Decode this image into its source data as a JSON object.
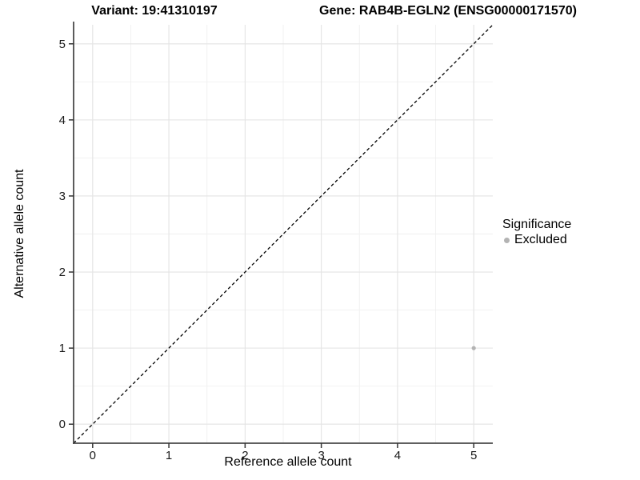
{
  "header": {
    "left_title": "Variant: 19:41310197",
    "right_title": "Gene: RAB4B-EGLN2 (ENSG00000171570)"
  },
  "chart_data": {
    "type": "scatter",
    "xlabel": "Reference allele count",
    "ylabel": "Alternative allele count",
    "xlim": [
      -0.25,
      5.25
    ],
    "ylim": [
      -0.25,
      5.25
    ],
    "x_ticks": [
      0,
      1,
      2,
      3,
      4,
      5
    ],
    "y_ticks": [
      0,
      1,
      2,
      3,
      4,
      5
    ],
    "minor_ticks": [
      0.5,
      1.5,
      2.5,
      3.5,
      4.5
    ],
    "grid": true,
    "series": [
      {
        "name": "Excluded",
        "color": "#b3b3b3",
        "point_radius": 2.6,
        "points": [
          {
            "x": 5,
            "y": 1
          }
        ]
      }
    ],
    "reference_line": {
      "type": "identity-diagonal",
      "style": "dashed",
      "color": "#000000",
      "from": -0.25,
      "to": 5.25
    },
    "legend": {
      "title": "Significance",
      "position": "right",
      "items": [
        {
          "label": "Excluded",
          "color": "#b3b3b3"
        }
      ]
    },
    "colors": {
      "major_grid": "#e3e3e3",
      "minor_grid": "#f0f0f0",
      "axis_line": "#4a4a4a",
      "tick_mark": "#333333",
      "tick_label": "#1a1a1a",
      "background": "#ffffff"
    }
  }
}
